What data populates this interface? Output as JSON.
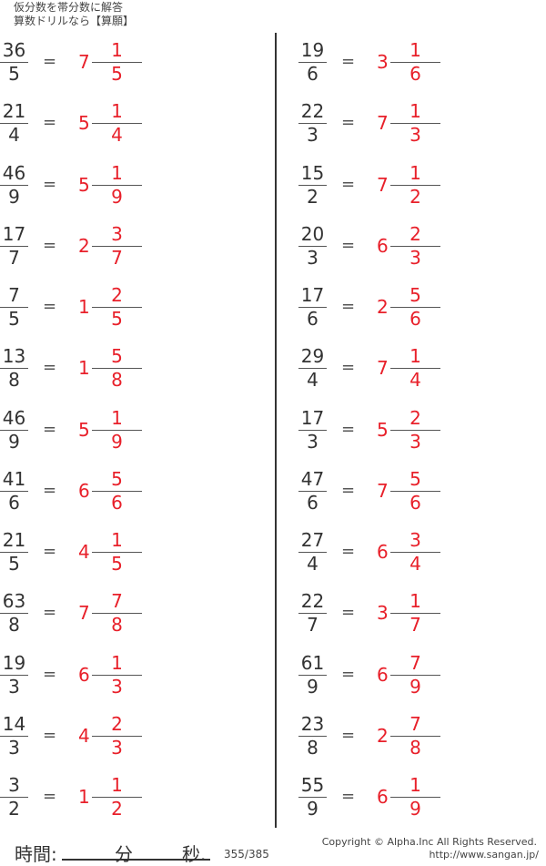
{
  "header": {
    "line1": "仮分数を帯分数に解答",
    "line2": "算数ドリルなら【算願】"
  },
  "left": [
    {
      "num": "36",
      "den": "5",
      "whole": "7",
      "an": "1",
      "ad": "5"
    },
    {
      "num": "21",
      "den": "4",
      "whole": "5",
      "an": "1",
      "ad": "4"
    },
    {
      "num": "46",
      "den": "9",
      "whole": "5",
      "an": "1",
      "ad": "9"
    },
    {
      "num": "17",
      "den": "7",
      "whole": "2",
      "an": "3",
      "ad": "7"
    },
    {
      "num": "7",
      "den": "5",
      "whole": "1",
      "an": "2",
      "ad": "5"
    },
    {
      "num": "13",
      "den": "8",
      "whole": "1",
      "an": "5",
      "ad": "8"
    },
    {
      "num": "46",
      "den": "9",
      "whole": "5",
      "an": "1",
      "ad": "9"
    },
    {
      "num": "41",
      "den": "6",
      "whole": "6",
      "an": "5",
      "ad": "6"
    },
    {
      "num": "21",
      "den": "5",
      "whole": "4",
      "an": "1",
      "ad": "5"
    },
    {
      "num": "63",
      "den": "8",
      "whole": "7",
      "an": "7",
      "ad": "8"
    },
    {
      "num": "19",
      "den": "3",
      "whole": "6",
      "an": "1",
      "ad": "3"
    },
    {
      "num": "14",
      "den": "3",
      "whole": "4",
      "an": "2",
      "ad": "3"
    },
    {
      "num": "3",
      "den": "2",
      "whole": "1",
      "an": "1",
      "ad": "2"
    }
  ],
  "right": [
    {
      "num": "19",
      "den": "6",
      "whole": "3",
      "an": "1",
      "ad": "6"
    },
    {
      "num": "22",
      "den": "3",
      "whole": "7",
      "an": "1",
      "ad": "3"
    },
    {
      "num": "15",
      "den": "2",
      "whole": "7",
      "an": "1",
      "ad": "2"
    },
    {
      "num": "20",
      "den": "3",
      "whole": "6",
      "an": "2",
      "ad": "3"
    },
    {
      "num": "17",
      "den": "6",
      "whole": "2",
      "an": "5",
      "ad": "6"
    },
    {
      "num": "29",
      "den": "4",
      "whole": "7",
      "an": "1",
      "ad": "4"
    },
    {
      "num": "17",
      "den": "3",
      "whole": "5",
      "an": "2",
      "ad": "3"
    },
    {
      "num": "47",
      "den": "6",
      "whole": "7",
      "an": "5",
      "ad": "6"
    },
    {
      "num": "27",
      "den": "4",
      "whole": "6",
      "an": "3",
      "ad": "4"
    },
    {
      "num": "22",
      "den": "7",
      "whole": "3",
      "an": "1",
      "ad": "7"
    },
    {
      "num": "61",
      "den": "9",
      "whole": "6",
      "an": "7",
      "ad": "9"
    },
    {
      "num": "23",
      "den": "8",
      "whole": "2",
      "an": "7",
      "ad": "8"
    },
    {
      "num": "55",
      "den": "9",
      "whole": "6",
      "an": "1",
      "ad": "9"
    }
  ],
  "equals": "=",
  "footer": {
    "time_label": "時間:",
    "minutes": "分",
    "seconds": "秒.",
    "page": "355/385",
    "copyright": "Copyright ©  Alpha.Inc All Rights Reserved.",
    "url": "http://www.sangan.jp/"
  },
  "colors": {
    "answer": "#e8202a",
    "text": "#333333"
  }
}
